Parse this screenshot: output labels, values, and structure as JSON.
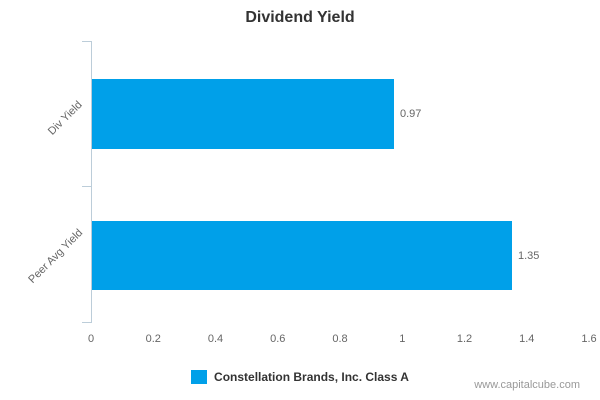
{
  "title": "Dividend Yield",
  "watermark": "www.capitalcube.com",
  "legend": {
    "label": "Constellation Brands, Inc. Class A",
    "swatch_color": "#00a0e9"
  },
  "chart_data": {
    "type": "bar",
    "orientation": "horizontal",
    "title": "Dividend Yield",
    "xlabel": "",
    "ylabel": "",
    "categories": [
      "Div Yield",
      "Peer Avg Yield"
    ],
    "series": [
      {
        "name": "Constellation Brands, Inc. Class A",
        "values": [
          0.97,
          1.35
        ]
      }
    ],
    "values": [
      0.97,
      1.35
    ],
    "value_labels": [
      "0.97",
      "1.35"
    ],
    "xlim": [
      0,
      1.6
    ],
    "x_ticks": [
      "0",
      "0.2",
      "0.4",
      "0.6",
      "0.8",
      "1",
      "1.2",
      "1.4",
      "1.6"
    ],
    "grid": false,
    "legend_position": "bottom",
    "bar_color": "#00a0e9",
    "axis_line_color": "#bccdd9"
  }
}
